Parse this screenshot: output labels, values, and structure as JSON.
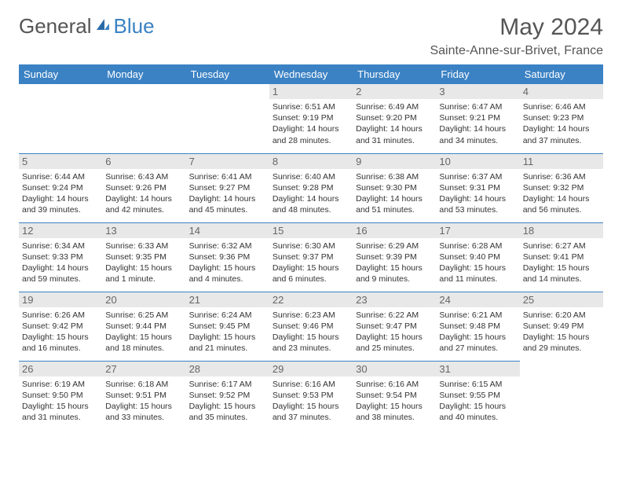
{
  "logo": {
    "text1": "General",
    "text2": "Blue"
  },
  "title": "May 2024",
  "location": "Sainte-Anne-sur-Brivet, France",
  "colors": {
    "header_bg": "#3b82c4",
    "header_text": "#ffffff",
    "daynum_bg": "#e8e8e8",
    "daynum_text": "#666666",
    "body_text": "#333333",
    "border": "#3b82c4",
    "logo_gray": "#555555",
    "logo_blue": "#3b82c4"
  },
  "day_headers": [
    "Sunday",
    "Monday",
    "Tuesday",
    "Wednesday",
    "Thursday",
    "Friday",
    "Saturday"
  ],
  "weeks": [
    [
      null,
      null,
      null,
      {
        "n": "1",
        "rise": "Sunrise: 6:51 AM",
        "set": "Sunset: 9:19 PM",
        "dl1": "Daylight: 14 hours",
        "dl2": "and 28 minutes."
      },
      {
        "n": "2",
        "rise": "Sunrise: 6:49 AM",
        "set": "Sunset: 9:20 PM",
        "dl1": "Daylight: 14 hours",
        "dl2": "and 31 minutes."
      },
      {
        "n": "3",
        "rise": "Sunrise: 6:47 AM",
        "set": "Sunset: 9:21 PM",
        "dl1": "Daylight: 14 hours",
        "dl2": "and 34 minutes."
      },
      {
        "n": "4",
        "rise": "Sunrise: 6:46 AM",
        "set": "Sunset: 9:23 PM",
        "dl1": "Daylight: 14 hours",
        "dl2": "and 37 minutes."
      }
    ],
    [
      {
        "n": "5",
        "rise": "Sunrise: 6:44 AM",
        "set": "Sunset: 9:24 PM",
        "dl1": "Daylight: 14 hours",
        "dl2": "and 39 minutes."
      },
      {
        "n": "6",
        "rise": "Sunrise: 6:43 AM",
        "set": "Sunset: 9:26 PM",
        "dl1": "Daylight: 14 hours",
        "dl2": "and 42 minutes."
      },
      {
        "n": "7",
        "rise": "Sunrise: 6:41 AM",
        "set": "Sunset: 9:27 PM",
        "dl1": "Daylight: 14 hours",
        "dl2": "and 45 minutes."
      },
      {
        "n": "8",
        "rise": "Sunrise: 6:40 AM",
        "set": "Sunset: 9:28 PM",
        "dl1": "Daylight: 14 hours",
        "dl2": "and 48 minutes."
      },
      {
        "n": "9",
        "rise": "Sunrise: 6:38 AM",
        "set": "Sunset: 9:30 PM",
        "dl1": "Daylight: 14 hours",
        "dl2": "and 51 minutes."
      },
      {
        "n": "10",
        "rise": "Sunrise: 6:37 AM",
        "set": "Sunset: 9:31 PM",
        "dl1": "Daylight: 14 hours",
        "dl2": "and 53 minutes."
      },
      {
        "n": "11",
        "rise": "Sunrise: 6:36 AM",
        "set": "Sunset: 9:32 PM",
        "dl1": "Daylight: 14 hours",
        "dl2": "and 56 minutes."
      }
    ],
    [
      {
        "n": "12",
        "rise": "Sunrise: 6:34 AM",
        "set": "Sunset: 9:33 PM",
        "dl1": "Daylight: 14 hours",
        "dl2": "and 59 minutes."
      },
      {
        "n": "13",
        "rise": "Sunrise: 6:33 AM",
        "set": "Sunset: 9:35 PM",
        "dl1": "Daylight: 15 hours",
        "dl2": "and 1 minute."
      },
      {
        "n": "14",
        "rise": "Sunrise: 6:32 AM",
        "set": "Sunset: 9:36 PM",
        "dl1": "Daylight: 15 hours",
        "dl2": "and 4 minutes."
      },
      {
        "n": "15",
        "rise": "Sunrise: 6:30 AM",
        "set": "Sunset: 9:37 PM",
        "dl1": "Daylight: 15 hours",
        "dl2": "and 6 minutes."
      },
      {
        "n": "16",
        "rise": "Sunrise: 6:29 AM",
        "set": "Sunset: 9:39 PM",
        "dl1": "Daylight: 15 hours",
        "dl2": "and 9 minutes."
      },
      {
        "n": "17",
        "rise": "Sunrise: 6:28 AM",
        "set": "Sunset: 9:40 PM",
        "dl1": "Daylight: 15 hours",
        "dl2": "and 11 minutes."
      },
      {
        "n": "18",
        "rise": "Sunrise: 6:27 AM",
        "set": "Sunset: 9:41 PM",
        "dl1": "Daylight: 15 hours",
        "dl2": "and 14 minutes."
      }
    ],
    [
      {
        "n": "19",
        "rise": "Sunrise: 6:26 AM",
        "set": "Sunset: 9:42 PM",
        "dl1": "Daylight: 15 hours",
        "dl2": "and 16 minutes."
      },
      {
        "n": "20",
        "rise": "Sunrise: 6:25 AM",
        "set": "Sunset: 9:44 PM",
        "dl1": "Daylight: 15 hours",
        "dl2": "and 18 minutes."
      },
      {
        "n": "21",
        "rise": "Sunrise: 6:24 AM",
        "set": "Sunset: 9:45 PM",
        "dl1": "Daylight: 15 hours",
        "dl2": "and 21 minutes."
      },
      {
        "n": "22",
        "rise": "Sunrise: 6:23 AM",
        "set": "Sunset: 9:46 PM",
        "dl1": "Daylight: 15 hours",
        "dl2": "and 23 minutes."
      },
      {
        "n": "23",
        "rise": "Sunrise: 6:22 AM",
        "set": "Sunset: 9:47 PM",
        "dl1": "Daylight: 15 hours",
        "dl2": "and 25 minutes."
      },
      {
        "n": "24",
        "rise": "Sunrise: 6:21 AM",
        "set": "Sunset: 9:48 PM",
        "dl1": "Daylight: 15 hours",
        "dl2": "and 27 minutes."
      },
      {
        "n": "25",
        "rise": "Sunrise: 6:20 AM",
        "set": "Sunset: 9:49 PM",
        "dl1": "Daylight: 15 hours",
        "dl2": "and 29 minutes."
      }
    ],
    [
      {
        "n": "26",
        "rise": "Sunrise: 6:19 AM",
        "set": "Sunset: 9:50 PM",
        "dl1": "Daylight: 15 hours",
        "dl2": "and 31 minutes."
      },
      {
        "n": "27",
        "rise": "Sunrise: 6:18 AM",
        "set": "Sunset: 9:51 PM",
        "dl1": "Daylight: 15 hours",
        "dl2": "and 33 minutes."
      },
      {
        "n": "28",
        "rise": "Sunrise: 6:17 AM",
        "set": "Sunset: 9:52 PM",
        "dl1": "Daylight: 15 hours",
        "dl2": "and 35 minutes."
      },
      {
        "n": "29",
        "rise": "Sunrise: 6:16 AM",
        "set": "Sunset: 9:53 PM",
        "dl1": "Daylight: 15 hours",
        "dl2": "and 37 minutes."
      },
      {
        "n": "30",
        "rise": "Sunrise: 6:16 AM",
        "set": "Sunset: 9:54 PM",
        "dl1": "Daylight: 15 hours",
        "dl2": "and 38 minutes."
      },
      {
        "n": "31",
        "rise": "Sunrise: 6:15 AM",
        "set": "Sunset: 9:55 PM",
        "dl1": "Daylight: 15 hours",
        "dl2": "and 40 minutes."
      },
      null
    ]
  ]
}
